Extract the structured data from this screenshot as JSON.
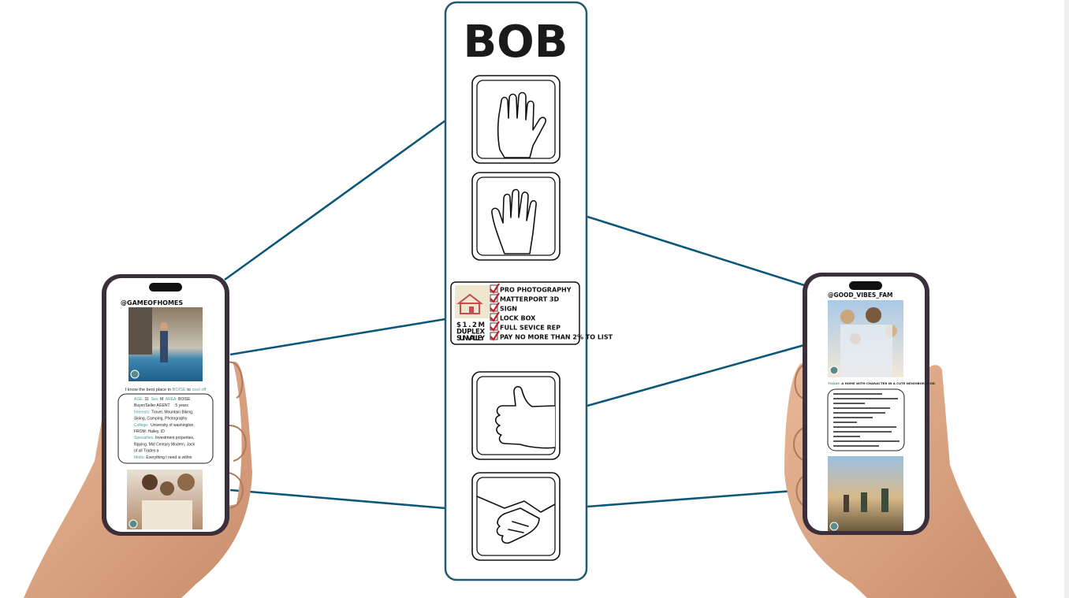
{
  "title": "BOB",
  "listing": {
    "price": "$1.2M",
    "kind": "DUPLEX",
    "location": "SUN VALLEY",
    "checklist": [
      "PRO PHOTOGRAPHY",
      "MATTERPORT 3D",
      "SIGN",
      "LOCK BOX",
      "FULL SEVICE REP",
      "PAY NO MORE THAN 2% TO LIST"
    ]
  },
  "left_phone": {
    "handle": "@GAMEOFHOMES",
    "caption": [
      {
        "text": "I know the best place in "
      },
      {
        "label": "BOISE"
      },
      {
        "text": " to "
      },
      {
        "label": "cool off"
      }
    ],
    "profile": [
      [
        {
          "label": "AGE:"
        },
        {
          "text": " 31  "
        },
        {
          "label": "Sex:"
        },
        {
          "text": " M  "
        },
        {
          "label": "AREA:"
        },
        {
          "text": " BOISE"
        }
      ],
      [
        {
          "text": "Buyer/Seller AGENT     5 years"
        }
      ],
      [
        {
          "label": "Interests:"
        },
        {
          "text": " Travel, Mountain Biking,"
        }
      ],
      [
        {
          "text": "Skiing, Camping, Photography"
        }
      ],
      [
        {
          "label": "College:"
        },
        {
          "text": "  University of washington"
        }
      ],
      [
        {
          "text": "FROM: Hailey, ID"
        }
      ],
      [
        {
          "label": "Specialties:"
        },
        {
          "text": " Investment properties,"
        }
      ],
      [
        {
          "text": "flipping, Mid Century Modern, Jack"
        }
      ],
      [
        {
          "text": "of all Trades a"
        }
      ],
      [
        {
          "label": "Motto:"
        },
        {
          "text": " Everything I need is within"
        }
      ]
    ]
  },
  "right_phone": {
    "handle": "@GOOD_VIBES_FAM",
    "caption": [
      {
        "label": "TODAY:"
      },
      {
        "text": " A HOME WITH CHARACTER IN A CUTE NEIGHBORHOOD"
      }
    ]
  }
}
